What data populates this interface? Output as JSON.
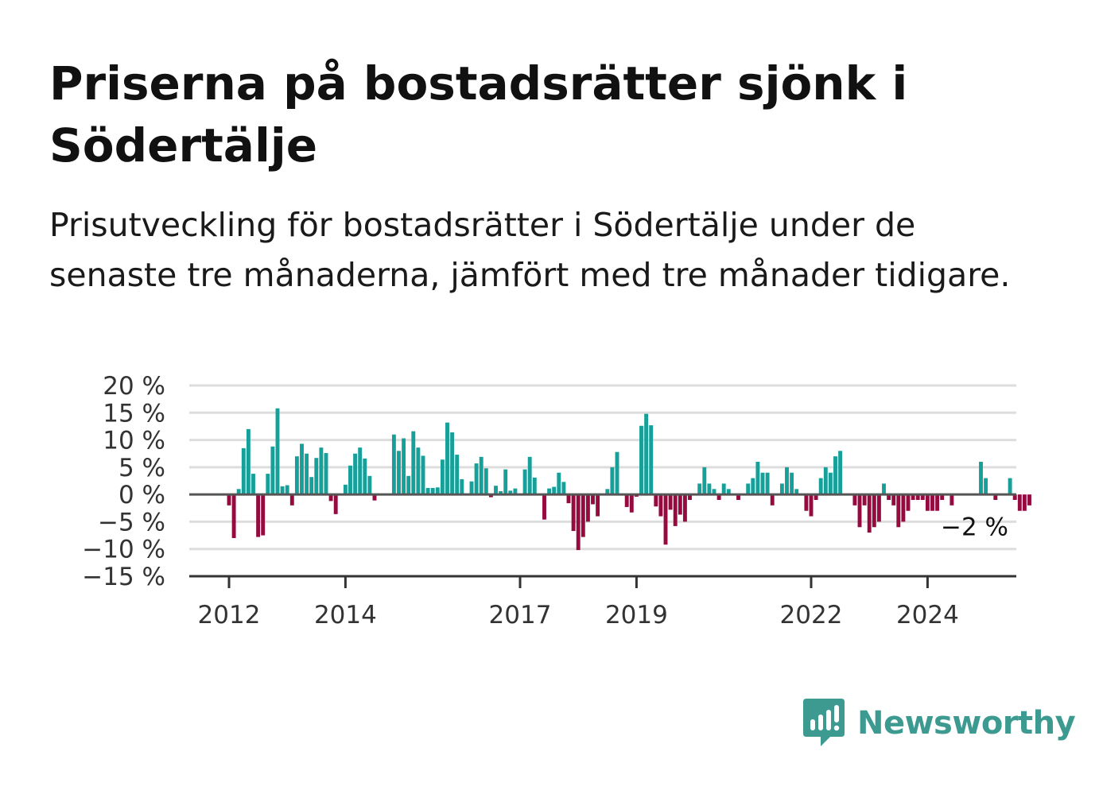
{
  "title": "Priserna på bostadsrätter sjönk i Södertälje",
  "subtitle": "Prisutveckling för bostadsrätter i Södertälje under de senaste tre månaderna, jämfört med tre månader tidigare.",
  "brand": {
    "name": "Newsworthy",
    "icon": "newsworthy-logo-icon",
    "color": "#3d9a91"
  },
  "colors": {
    "positive": "#17a09a",
    "negative": "#950a3f",
    "grid": "#dddddd",
    "zero": "#555555",
    "axis": "#333333"
  },
  "chart_data": {
    "type": "bar",
    "title": "Priserna på bostadsrätter sjönk i Södertälje",
    "xlabel": "",
    "ylabel": "",
    "unit": "%",
    "ylim": [
      -15,
      20
    ],
    "yticks": [
      20,
      15,
      10,
      5,
      0,
      -5,
      -10,
      -15
    ],
    "ytick_labels": [
      "20 %",
      "15 %",
      "10 %",
      "5 %",
      "0 %",
      "−5 %",
      "−10 %",
      "−15 %"
    ],
    "xticks": [
      {
        "label": "2012",
        "date": "2012-01"
      },
      {
        "label": "2014",
        "date": "2014-01"
      },
      {
        "label": "2017",
        "date": "2017-01"
      },
      {
        "label": "2019",
        "date": "2019-01"
      },
      {
        "label": "2022",
        "date": "2022-01"
      },
      {
        "label": "2024",
        "date": "2024-01"
      }
    ],
    "grid": true,
    "end_label": "−2 %",
    "start_date": "2012-01",
    "frequency": "monthly",
    "values": [
      -2,
      -8,
      1,
      8.5,
      12,
      3.8,
      -7.8,
      -7.5,
      3.8,
      8.8,
      15.8,
      1.5,
      1.7,
      -2,
      7,
      9.3,
      7.5,
      3.2,
      6.7,
      8.6,
      7.6,
      -1.2,
      -3.6,
      0,
      1.8,
      5.3,
      7.5,
      8.6,
      6.6,
      3.4,
      -1.1,
      0,
      0,
      0,
      11,
      8,
      10.3,
      3.4,
      11.6,
      8.6,
      7.1,
      1.2,
      1.2,
      1.3,
      6.4,
      13.2,
      11.4,
      7.3,
      2.8,
      0,
      2.4,
      5.7,
      6.9,
      4.8,
      -0.5,
      1.6,
      0.6,
      4.6,
      0.7,
      1.1,
      0,
      4.6,
      6.9,
      3.1,
      0,
      -4.6,
      1.1,
      1.4,
      4,
      2.3,
      -1.6,
      -6.7,
      -10.2,
      -7.8,
      -5,
      -1.8,
      -4,
      0,
      1,
      5,
      7.8,
      0,
      -2.3,
      -3.3,
      -0.4,
      12.6,
      14.8,
      12.7,
      -2.2,
      -4,
      -9.2,
      -2.8,
      -5.8,
      -3.7,
      -5,
      -1,
      0,
      2,
      5,
      2,
      1,
      -1,
      2,
      1,
      0,
      -1,
      0,
      2,
      3,
      6,
      4,
      4,
      -2,
      0,
      2,
      5,
      4,
      1,
      0,
      -3,
      -4,
      -1,
      3,
      5,
      4,
      7,
      8,
      0,
      0,
      -2,
      -6,
      -2,
      -7,
      -6,
      -5,
      2,
      -1,
      -2,
      -6,
      -5,
      -3,
      -1,
      -1,
      -1,
      -3,
      -3,
      -3,
      -1,
      0,
      -2,
      0,
      0,
      0,
      0,
      0,
      6,
      3,
      0,
      -1,
      0,
      0,
      3,
      -1,
      -3,
      -3,
      -2
    ]
  }
}
